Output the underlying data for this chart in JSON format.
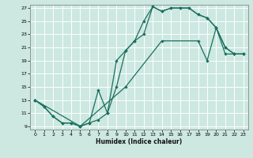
{
  "xlabel": "Humidex (Indice chaleur)",
  "bg_color": "#cce8e0",
  "grid_color": "#ffffff",
  "line_color": "#1a7060",
  "xlim": [
    -0.5,
    23.5
  ],
  "ylim": [
    8.5,
    27.5
  ],
  "yticks": [
    9,
    11,
    13,
    15,
    17,
    19,
    21,
    23,
    25,
    27
  ],
  "xticks": [
    0,
    1,
    2,
    3,
    4,
    5,
    6,
    7,
    8,
    9,
    10,
    11,
    12,
    13,
    14,
    15,
    16,
    17,
    18,
    19,
    20,
    21,
    22,
    23
  ],
  "line1_x": [
    0,
    1,
    2,
    3,
    4,
    5,
    6,
    7,
    8,
    9,
    10,
    11,
    12,
    13,
    14,
    15,
    16,
    17,
    18,
    19,
    20,
    21,
    22,
    23
  ],
  "line1_y": [
    13,
    12,
    10.5,
    9.5,
    9.5,
    9,
    9.5,
    10,
    11,
    15,
    20.5,
    22,
    25,
    27.2,
    26.5,
    27,
    27,
    27,
    26,
    25.5,
    24,
    21,
    20,
    20
  ],
  "line2_x": [
    0,
    1,
    2,
    3,
    4,
    5,
    6,
    7,
    8,
    9,
    10,
    11,
    12,
    13,
    14,
    15,
    16,
    17,
    18,
    19,
    20,
    21,
    22,
    23
  ],
  "line2_y": [
    13,
    12,
    10.5,
    9.5,
    9.5,
    9,
    9.5,
    14.5,
    11,
    19,
    20.5,
    22,
    23,
    27.2,
    26.5,
    27,
    27,
    27,
    26,
    25.5,
    24,
    21,
    20,
    20
  ],
  "line3_x": [
    0,
    5,
    10,
    14,
    18,
    19,
    20,
    21,
    22,
    23
  ],
  "line3_y": [
    13,
    9,
    15,
    22,
    22,
    19,
    24,
    20,
    20,
    20
  ]
}
